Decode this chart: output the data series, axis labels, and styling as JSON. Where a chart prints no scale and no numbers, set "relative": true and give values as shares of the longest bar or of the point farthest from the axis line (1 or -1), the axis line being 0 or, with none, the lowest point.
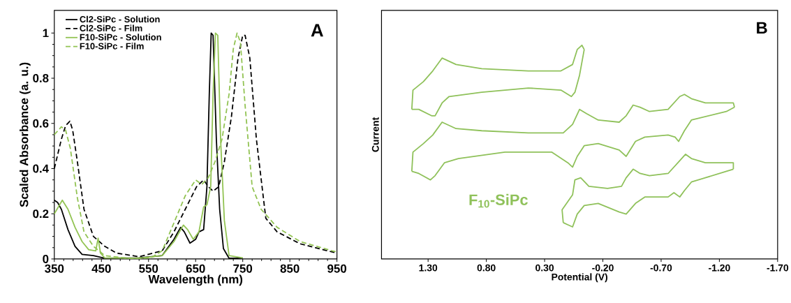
{
  "chart_data": [
    {
      "type": "line",
      "xlabel": "Wavelength (nm)",
      "ylabel": "Scaled Absorbance (a. u.)",
      "annotations": [
        "A"
      ],
      "xlim": [
        350,
        950
      ],
      "xticks": [
        350,
        450,
        550,
        650,
        750,
        850,
        950
      ],
      "ylim": [
        0,
        1.1
      ],
      "yticks": [
        0,
        0.2,
        0.4,
        0.6,
        0.8,
        1
      ],
      "legend": "top left",
      "series": [
        {
          "name": "Cl2-SiPc - Solution",
          "color": "#000000",
          "line_style": "solid",
          "x": [
            350,
            357,
            365,
            379,
            394,
            409,
            433,
            457,
            530,
            579,
            604,
            618,
            626,
            638,
            650,
            657,
            667,
            674,
            679,
            683,
            687,
            694,
            701,
            709,
            721,
            750
          ],
          "values": [
            0.26,
            0.25,
            0.22,
            0.13,
            0.056,
            0.02,
            0.015,
            0.003,
            0.005,
            0.015,
            0.087,
            0.14,
            0.12,
            0.07,
            0.087,
            0.12,
            0.13,
            0.32,
            0.73,
            1.0,
            0.99,
            0.53,
            0.22,
            0.046,
            0.003,
            0.003
          ]
        },
        {
          "name": "Cl2-SiPc - Film",
          "color": "#000000",
          "line_style": "dashed",
          "x": [
            350,
            365,
            374,
            383,
            389,
            399,
            413,
            433,
            457,
            482,
            530,
            579,
            604,
            628,
            652,
            667,
            677,
            687,
            699,
            711,
            726,
            740,
            750,
            755,
            765,
            779,
            799,
            823,
            872,
            940,
            950
          ],
          "values": [
            0.4,
            0.53,
            0.59,
            0.61,
            0.57,
            0.43,
            0.22,
            0.1,
            0.056,
            0.026,
            0.01,
            0.036,
            0.12,
            0.22,
            0.32,
            0.35,
            0.32,
            0.3,
            0.32,
            0.43,
            0.63,
            0.89,
            0.99,
            0.99,
            0.89,
            0.53,
            0.18,
            0.12,
            0.067,
            0.031,
            0.026
          ]
        },
        {
          "name": "F10-SiPc - Solution",
          "color": "#92c353",
          "line_style": "solid",
          "x": [
            350,
            367,
            379,
            394,
            409,
            423,
            438,
            443,
            448,
            457,
            530,
            579,
            604,
            624,
            633,
            645,
            657,
            667,
            674,
            682,
            687,
            692,
            697,
            703,
            711,
            721,
            750
          ],
          "values": [
            0.2,
            0.26,
            0.22,
            0.14,
            0.077,
            0.041,
            0.036,
            0.092,
            0.026,
            0.005,
            0.003,
            0.015,
            0.077,
            0.15,
            0.13,
            0.087,
            0.12,
            0.23,
            0.24,
            0.32,
            0.73,
            1.0,
            0.99,
            0.53,
            0.17,
            0.015,
            0.005
          ]
        },
        {
          "name": "F10-SiPc - Film",
          "color": "#92c353",
          "line_style": "dashed",
          "x": [
            350,
            365,
            374,
            384,
            399,
            413,
            433,
            457,
            506,
            555,
            579,
            604,
            628,
            650,
            663,
            677,
            691,
            706,
            721,
            730,
            738,
            745,
            755,
            770,
            789,
            823,
            872,
            940,
            950
          ],
          "values": [
            0.55,
            0.585,
            0.57,
            0.49,
            0.27,
            0.12,
            0.056,
            0.015,
            0.003,
            0.005,
            0.036,
            0.16,
            0.28,
            0.35,
            0.33,
            0.36,
            0.43,
            0.53,
            0.73,
            0.93,
            1.0,
            0.96,
            0.68,
            0.32,
            0.22,
            0.14,
            0.077,
            0.036,
            0.031
          ]
        }
      ]
    },
    {
      "type": "line",
      "xlabel": "Potential (V)",
      "ylabel": "Current",
      "annotations": [
        "B",
        "F$_{10}$-SiPc"
      ],
      "relative": true,
      "xlim": [
        1.7,
        -1.7
      ],
      "xticks": [
        {
          "value": 1.3,
          "label": "1.30"
        },
        {
          "value": 0.8,
          "label": "0.80"
        },
        {
          "value": 0.3,
          "label": "0.30"
        },
        {
          "value": -0.2,
          "label": "-0.20"
        },
        {
          "value": -0.7,
          "label": "-0.70"
        },
        {
          "value": -1.2,
          "label": "-1.20"
        },
        {
          "value": -1.7,
          "label": "-1.70"
        }
      ],
      "series": [
        {
          "color": "#8fc15a",
          "x": [
            1.44,
            1.43,
            1.34,
            1.26,
            1.18,
            1.06,
            0.84,
            0.44,
            0.16,
            0.06,
            0.02,
            -0.02,
            -0.04
          ],
          "values": [
            0.7,
            0.79,
            0.83,
            0.88,
            0.94,
            0.91,
            0.89,
            0.88,
            0.88,
            0.91,
            0.98,
            1.0,
            0.98
          ]
        },
        {
          "color": "#8fc15a",
          "x": [
            -0.04,
            0.0,
            0.04,
            0.07,
            0.16,
            0.44,
            0.84,
            1.12,
            1.18,
            1.24,
            1.27,
            1.38,
            1.44
          ],
          "values": [
            0.98,
            0.86,
            0.78,
            0.76,
            0.79,
            0.8,
            0.78,
            0.76,
            0.73,
            0.67,
            0.67,
            0.7,
            0.7
          ]
        },
        {
          "color": "#8fc15a",
          "x": [
            1.44,
            1.43,
            1.34,
            1.26,
            1.18,
            1.06,
            0.84,
            0.44,
            0.14,
            0.06,
            0.0,
            -0.06,
            -0.16,
            -0.34,
            -0.4,
            -0.46,
            -0.52,
            -0.6,
            -0.76,
            -0.86,
            -0.9,
            -0.96,
            -1.08,
            -1.32,
            -1.33
          ],
          "values": [
            0.41,
            0.5,
            0.54,
            0.58,
            0.64,
            0.61,
            0.6,
            0.59,
            0.59,
            0.63,
            0.7,
            0.68,
            0.65,
            0.64,
            0.67,
            0.72,
            0.71,
            0.69,
            0.7,
            0.76,
            0.77,
            0.75,
            0.73,
            0.73,
            0.71
          ]
        },
        {
          "color": "#8fc15a",
          "x": [
            -1.33,
            -1.26,
            -0.96,
            -0.9,
            -0.85,
            -0.82,
            -0.76,
            -0.56,
            -0.48,
            -0.4,
            -0.34,
            -0.16,
            -0.04,
            0.02,
            0.06,
            0.1,
            0.24,
            0.64,
            1.04,
            1.16,
            1.24,
            1.28,
            1.38,
            1.44
          ],
          "values": [
            0.71,
            0.69,
            0.65,
            0.6,
            0.55,
            0.57,
            0.58,
            0.57,
            0.55,
            0.48,
            0.51,
            0.54,
            0.53,
            0.48,
            0.43,
            0.45,
            0.5,
            0.5,
            0.47,
            0.45,
            0.39,
            0.37,
            0.4,
            0.41
          ]
        },
        {
          "color": "#8fc15a",
          "x": [
            0.14,
            0.15,
            0.06,
            0.04,
            -0.01,
            -0.08,
            -0.24,
            -0.36,
            -0.4,
            -0.46,
            -0.52,
            -0.6,
            -0.76,
            -0.86,
            -0.91,
            -0.96,
            -1.08,
            -1.32,
            -1.32
          ],
          "values": [
            0.17,
            0.23,
            0.3,
            0.37,
            0.38,
            0.34,
            0.33,
            0.34,
            0.38,
            0.42,
            0.4,
            0.39,
            0.4,
            0.46,
            0.49,
            0.47,
            0.45,
            0.45,
            0.42
          ]
        },
        {
          "color": "#8fc15a",
          "x": [
            -1.32,
            -1.26,
            -0.96,
            -0.9,
            -0.86,
            -0.81,
            -0.76,
            -0.56,
            -0.48,
            -0.4,
            -0.34,
            -0.16,
            -0.04,
            0.02,
            0.06,
            0.1,
            0.14
          ],
          "values": [
            0.42,
            0.41,
            0.36,
            0.32,
            0.29,
            0.31,
            0.29,
            0.29,
            0.26,
            0.21,
            0.22,
            0.26,
            0.25,
            0.21,
            0.15,
            0.16,
            0.17
          ]
        }
      ]
    }
  ]
}
